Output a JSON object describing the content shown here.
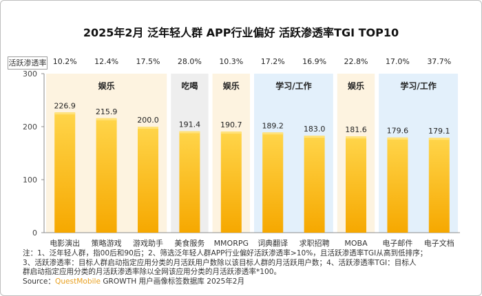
{
  "title": "2025年2月 泛年轻人群 APP行业偏好 活跃渗透率TGI TOP10",
  "penetration_row": {
    "label": "活跃渗透率",
    "values": [
      "10.2%",
      "12.4%",
      "17.5%",
      "28.0%",
      "10.3%",
      "17.2%",
      "16.9%",
      "22.8%",
      "17.0%",
      "37.7%"
    ]
  },
  "groups": [
    {
      "label": "娱乐",
      "color": "#fdf3e0",
      "start": 0,
      "end": 2
    },
    {
      "label": "吃喝",
      "color": "#eeeeee",
      "start": 3,
      "end": 3
    },
    {
      "label": "娱乐",
      "color": "#fdf3e0",
      "start": 4,
      "end": 4
    },
    {
      "label": "学习/工作",
      "color": "#e3f0fb",
      "start": 5,
      "end": 6
    },
    {
      "label": "娱乐",
      "color": "#fdf3e0",
      "start": 7,
      "end": 7
    },
    {
      "label": "学习/工作",
      "color": "#e3f0fb",
      "start": 8,
      "end": 9
    }
  ],
  "chart_data": {
    "type": "bar",
    "title": "2025年2月 泛年轻人群 APP行业偏好 活跃渗透率TGI TOP10",
    "categories": [
      "电影演出",
      "策略游戏",
      "游戏助手",
      "美食服务",
      "MMORPG",
      "词典翻译",
      "求职招聘",
      "MOBA",
      "电子邮件",
      "电子文档"
    ],
    "values": [
      226.9,
      215.9,
      200.0,
      191.4,
      190.7,
      189.2,
      183.0,
      181.6,
      179.6,
      179.1
    ],
    "value_labels": [
      "226.9",
      "215.9",
      "200.0",
      "191.4",
      "190.7",
      "189.2",
      "183.0",
      "181.6",
      "179.6",
      "179.1"
    ],
    "ylim": [
      0,
      300
    ],
    "yticks": [
      "0",
      "100",
      "200",
      "300"
    ],
    "bar_color_top": "#ffd54a",
    "bar_color_bottom": "#f6a800",
    "grid": false,
    "legend": "none"
  },
  "notes": [
    "注：1、泛年轻人群，指00后和90后；2、筛选泛年轻人群APP行业偏好活跃渗透率>10%，且活跃渗透率TGI从高到低排序；",
    "3、活跃渗透率：目标人群启动指定应用分类的月活跃用户数除以该目标人群的月活跃用户数；4、活跃渗透率TGI：目标人",
    "群启动指定应用分类的月活跃渗透率除以全网该应用分类的月活跃渗透率*100。"
  ],
  "source": {
    "prefix": "Source：",
    "brand": "QuestMobile",
    "rest": " GROWTH 用户画像标签数据库 2025年2月"
  }
}
